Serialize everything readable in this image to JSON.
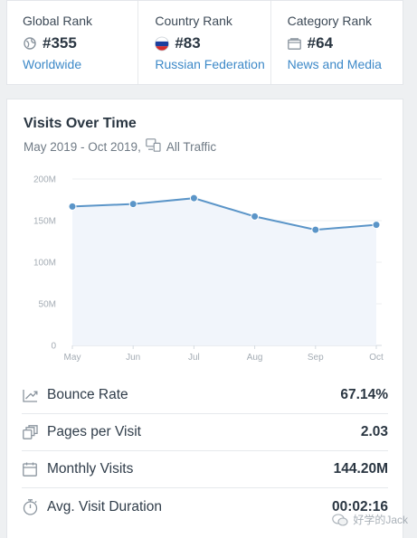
{
  "ranks": [
    {
      "label": "Global Rank",
      "icon": "globe-icon",
      "value": "#355",
      "link": "Worldwide"
    },
    {
      "label": "Country Rank",
      "icon": "russia-flag-icon",
      "value": "#83",
      "link": "Russian Federation"
    },
    {
      "label": "Category Rank",
      "icon": "category-icon",
      "value": "#64",
      "link": "News and Media"
    }
  ],
  "visits": {
    "title": "Visits Over Time",
    "date_range": "May 2019 - Oct 2019,",
    "traffic_type": "All Traffic"
  },
  "chart_data": {
    "type": "line",
    "categories": [
      "May",
      "Jun",
      "Jul",
      "Aug",
      "Sep",
      "Oct"
    ],
    "y_tick_labels": [
      "0",
      "50M",
      "100M",
      "150M",
      "200M"
    ],
    "ylim": [
      0,
      200000000
    ],
    "grid": true,
    "series": [
      {
        "values": [
          167000000,
          170000000,
          177000000,
          155000000,
          139000000,
          145000000
        ]
      }
    ],
    "line_color": "#5b95c8",
    "fill_color": "#f1f5fb"
  },
  "metrics": [
    {
      "label": "Bounce Rate",
      "icon": "bounce-rate-icon",
      "value": "67.14%"
    },
    {
      "label": "Pages per Visit",
      "icon": "pages-icon",
      "value": "2.03"
    },
    {
      "label": "Monthly Visits",
      "icon": "calendar-icon",
      "value": "144.20M"
    },
    {
      "label": "Avg. Visit Duration",
      "icon": "stopwatch-icon",
      "value": "00:02:16"
    }
  ],
  "watermark": "好学的Jack",
  "colors": {
    "link": "#3d89c8",
    "accent_line": "#5b95c8"
  }
}
